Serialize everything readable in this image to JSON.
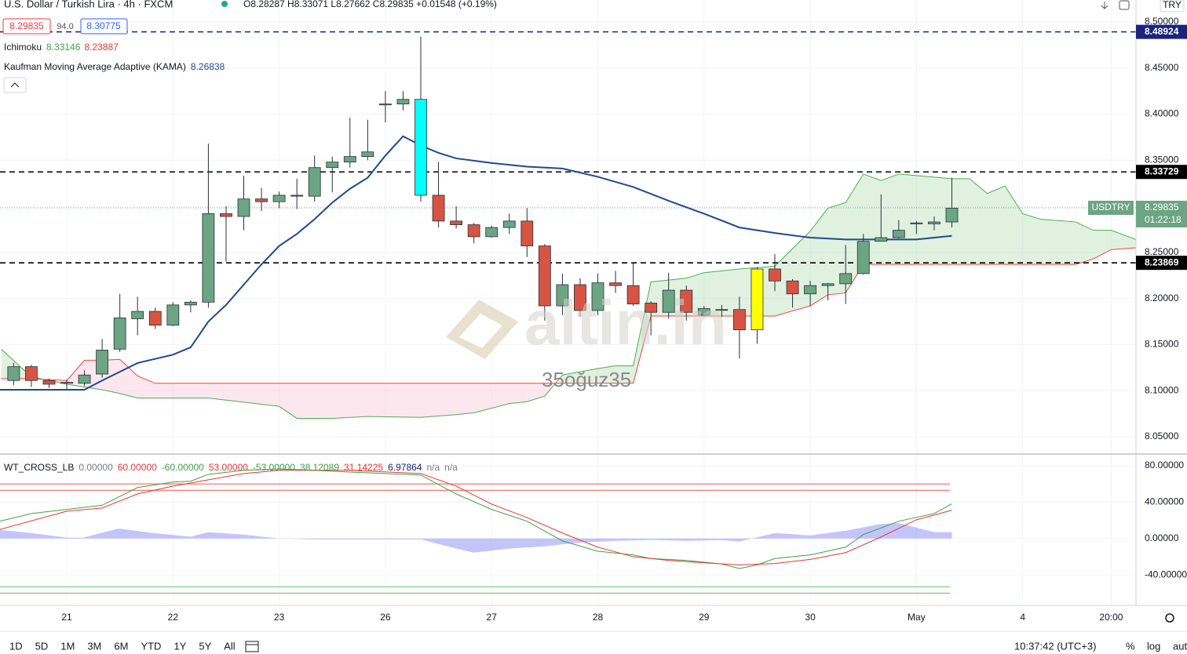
{
  "header": {
    "symbol": "U.S. Dollar / Turkish Lira · 4h · FXCM",
    "ohlc": "O8.28287 H8.33071 L8.27662 C8.29835 +0.01548 (+0.19%)",
    "bid": "8.29835",
    "spread": "94.0",
    "ask": "8.30775",
    "currency": "TRY"
  },
  "indicators": {
    "ichimoku": {
      "name": "Ichimoku",
      "values": [
        "8.33146",
        "8.23887"
      ]
    },
    "kama": {
      "name": "Kaufman Moving Average Adaptive (KAMA)",
      "value": "8.26838"
    }
  },
  "watermark": {
    "brand": "altin.in",
    "user": "35oğuz35"
  },
  "toolbar": {
    "ranges": [
      "1D",
      "5D",
      "1M",
      "3M",
      "6M",
      "YTD",
      "1Y",
      "5Y",
      "All"
    ],
    "time": "10:37:42 (UTC+3)",
    "options": [
      "%",
      "log",
      "auto"
    ]
  },
  "chart_data": [
    {
      "type": "candlestick",
      "symbol_label": "USDTRY",
      "countdown": "01:22:18",
      "x": [
        -3,
        -2,
        -1,
        0,
        1,
        2,
        3,
        4,
        5,
        6,
        7,
        8,
        9,
        10,
        11,
        12,
        13,
        14,
        15,
        16,
        17,
        18,
        19,
        20,
        21,
        22,
        23,
        24,
        25,
        26,
        27,
        28,
        29,
        30,
        31,
        32,
        33,
        34,
        35,
        36,
        37,
        38,
        39,
        40,
        41,
        42,
        43,
        44,
        45,
        46,
        47,
        48,
        49,
        50
      ],
      "open": [
        8.111,
        8.126,
        8.111,
        8.108,
        8.108,
        8.118,
        8.145,
        8.178,
        8.186,
        8.171,
        8.193,
        8.196,
        8.292,
        8.289,
        8.308,
        8.305,
        8.312,
        8.311,
        8.342,
        8.348,
        8.354,
        8.41,
        8.411,
        8.416,
        8.312,
        8.284,
        8.28,
        8.267,
        8.277,
        8.284,
        8.257,
        8.192,
        8.215,
        8.187,
        8.217,
        8.214,
        8.195,
        8.185,
        8.209,
        8.182,
        8.188,
        8.188,
        8.166,
        8.232,
        8.219,
        8.205,
        8.214,
        8.216,
        8.227,
        8.262,
        8.266,
        8.281,
        8.281,
        8.283
      ],
      "high": [
        8.13,
        8.128,
        8.113,
        8.112,
        8.122,
        8.156,
        8.205,
        8.202,
        8.19,
        8.196,
        8.198,
        8.368,
        8.3,
        8.333,
        8.32,
        8.316,
        8.33,
        8.355,
        8.354,
        8.396,
        8.394,
        8.425,
        8.425,
        8.484,
        8.348,
        8.3,
        8.282,
        8.279,
        8.292,
        8.298,
        8.259,
        8.227,
        8.222,
        8.227,
        8.23,
        8.238,
        8.197,
        8.228,
        8.214,
        8.192,
        8.193,
        8.202,
        8.234,
        8.248,
        8.221,
        8.219,
        8.217,
        8.258,
        8.27,
        8.313,
        8.285,
        8.284,
        8.289,
        8.331
      ],
      "low": [
        8.106,
        8.104,
        8.103,
        8.102,
        8.105,
        8.114,
        8.142,
        8.16,
        8.167,
        8.17,
        8.185,
        8.19,
        8.24,
        8.274,
        8.295,
        8.298,
        8.297,
        8.305,
        8.315,
        8.342,
        8.35,
        8.391,
        8.404,
        8.305,
        8.277,
        8.276,
        8.26,
        8.266,
        8.27,
        8.245,
        8.176,
        8.182,
        8.18,
        8.182,
        8.206,
        8.192,
        8.16,
        8.178,
        8.176,
        8.18,
        8.18,
        8.135,
        8.151,
        8.208,
        8.19,
        8.192,
        8.198,
        8.194,
        8.226,
        8.262,
        8.265,
        8.27,
        8.274,
        8.277
      ],
      "close": [
        8.126,
        8.111,
        8.107,
        8.109,
        8.117,
        8.144,
        8.179,
        8.186,
        8.171,
        8.193,
        8.196,
        8.292,
        8.289,
        8.308,
        8.305,
        8.312,
        8.311,
        8.342,
        8.348,
        8.354,
        8.359,
        8.411,
        8.416,
        8.312,
        8.284,
        8.28,
        8.267,
        8.277,
        8.284,
        8.257,
        8.192,
        8.215,
        8.187,
        8.217,
        8.214,
        8.194,
        8.185,
        8.209,
        8.185,
        8.189,
        8.188,
        8.166,
        8.232,
        8.219,
        8.205,
        8.214,
        8.216,
        8.227,
        8.262,
        8.266,
        8.274,
        8.282,
        8.283,
        8.298
      ],
      "up_color": "#6ba583",
      "down_color": "#d75442",
      "highlight": [
        {
          "index": 23,
          "color": "#00ffff"
        },
        {
          "index": 42,
          "color": "#ffff00"
        }
      ],
      "xlim": [
        -3.77,
        60.4
      ],
      "xticks": [
        {
          "value": 0,
          "label": "21"
        },
        {
          "value": 6,
          "label": "22"
        },
        {
          "value": 12,
          "label": "23"
        },
        {
          "value": 18,
          "label": "26"
        },
        {
          "value": 24,
          "label": "27"
        },
        {
          "value": 30,
          "label": "28"
        },
        {
          "value": 36,
          "label": "29"
        },
        {
          "value": 42,
          "label": "30"
        },
        {
          "value": 48,
          "label": "May"
        },
        {
          "value": 54,
          "label": "4"
        },
        {
          "value": 59,
          "label": "20:00"
        }
      ],
      "ylim": [
        8.0321,
        8.5238
      ],
      "yticks": [
        {
          "value": 8.5,
          "label": "8.50000"
        },
        {
          "value": 8.45,
          "label": "8.45000"
        },
        {
          "value": 8.4,
          "label": "8.40000"
        },
        {
          "value": 8.35,
          "label": "8.35000"
        },
        {
          "value": 8.3,
          "label": "8.30000"
        },
        {
          "value": 8.25,
          "label": "8.25000"
        },
        {
          "value": 8.2,
          "label": "8.20000"
        },
        {
          "value": 8.15,
          "label": "8.15000"
        },
        {
          "value": 8.1,
          "label": "8.10000"
        },
        {
          "value": 8.05,
          "label": "8.05000"
        }
      ],
      "grid": true,
      "last_price": 8.29835,
      "price_lines": [
        {
          "value": 8.48924,
          "color": "#1a237e"
        },
        {
          "value": 8.33729,
          "color": "#000000"
        },
        {
          "value": 8.23869,
          "color": "#000000"
        }
      ],
      "kama": {
        "color": "#1e4a8c",
        "x": [
          -3.77,
          1,
          2,
          4,
          6,
          7,
          8,
          9,
          10,
          11,
          12,
          13,
          14,
          15,
          16,
          17,
          18,
          19,
          20,
          21,
          22,
          24,
          26,
          28,
          30,
          32,
          34,
          36,
          38,
          40,
          42,
          44,
          46,
          48,
          50
        ],
        "values": [
          8.101,
          8.101,
          8.111,
          8.13,
          8.139,
          8.147,
          8.175,
          8.193,
          8.215,
          8.237,
          8.257,
          8.27,
          8.286,
          8.304,
          8.319,
          8.331,
          8.355,
          8.376,
          8.366,
          8.358,
          8.352,
          8.347,
          8.343,
          8.341,
          8.332,
          8.321,
          8.306,
          8.292,
          8.277,
          8.271,
          8.266,
          8.264,
          8.264,
          8.264,
          8.268
        ]
      },
      "ichimoku": {
        "color_a": "#4caf50",
        "color_b": "#f44336",
        "fill_up": "#a5d6a7",
        "fill_down": "#f8bbd0",
        "x": [
          -3.7,
          -2,
          0,
          1,
          2,
          3,
          4,
          5,
          8,
          12,
          13,
          15,
          17,
          20,
          22,
          23,
          25,
          26,
          27,
          28,
          30,
          31,
          32,
          33,
          35,
          36,
          38,
          40,
          42,
          43,
          44,
          45,
          46,
          47,
          50,
          51,
          52,
          53,
          54,
          55,
          57,
          58,
          59,
          60.4
        ],
        "span_a": [
          8.145,
          8.115,
          8.107,
          8.104,
          8.101,
          8.097,
          8.092,
          8.092,
          8.092,
          8.083,
          8.07,
          8.07,
          8.072,
          8.071,
          8.074,
          8.076,
          8.086,
          8.088,
          8.094,
          8.117,
          8.124,
          8.127,
          8.127,
          8.218,
          8.222,
          8.228,
          8.232,
          8.235,
          8.273,
          8.298,
          8.304,
          8.335,
          8.328,
          8.335,
          8.33,
          8.33,
          8.314,
          8.322,
          8.292,
          8.286,
          8.283,
          8.274,
          8.274,
          8.264
        ],
        "span_b": [
          8.113,
          8.113,
          8.111,
          8.133,
          8.133,
          8.134,
          8.116,
          8.108,
          8.108,
          8.108,
          8.108,
          8.108,
          8.108,
          8.108,
          8.108,
          8.108,
          8.108,
          8.108,
          8.108,
          8.108,
          8.108,
          8.108,
          8.108,
          8.181,
          8.181,
          8.181,
          8.181,
          8.181,
          8.192,
          8.204,
          8.206,
          8.237,
          8.237,
          8.237,
          8.237,
          8.237,
          8.237,
          8.237,
          8.237,
          8.237,
          8.237,
          8.243,
          8.253,
          8.255
        ]
      }
    },
    {
      "type": "line",
      "xlim": [
        -3.77,
        60.4
      ],
      "ylim": [
        -73.5,
        92
      ],
      "yticks": [
        {
          "value": 80,
          "label": "80.00000"
        },
        {
          "value": 40,
          "label": "40.00000"
        },
        {
          "value": 0,
          "label": "0.00000"
        },
        {
          "value": -40,
          "label": "-40.00000"
        }
      ],
      "legend": {
        "name": "WT_CROSS_LB",
        "values": [
          {
            "text": "0.00000",
            "color": "#787b86"
          },
          {
            "text": "60.00000",
            "color": "#e53935"
          },
          {
            "text": "-60.00000",
            "color": "#43a047"
          },
          {
            "text": "53.00000",
            "color": "#e53935"
          },
          {
            "text": "-53.00000",
            "color": "#43a047"
          },
          {
            "text": "38.12089",
            "color": "#43a047"
          },
          {
            "text": "31.14225",
            "color": "#e53935"
          },
          {
            "text": "6.97864",
            "color": "#1a237e"
          },
          {
            "text": "n/a",
            "color": "#787b86"
          },
          {
            "text": "n/a",
            "color": "#787b86"
          }
        ]
      },
      "levels": [
        {
          "value": 60,
          "color": "#ef5350"
        },
        {
          "value": 53,
          "color": "#ef5350"
        },
        {
          "value": -53,
          "color": "#66bb6a"
        },
        {
          "value": -60,
          "color": "#66bb6a"
        }
      ],
      "series": [
        {
          "color": "#43a047",
          "x": [
            -3.77,
            -2,
            0,
            2,
            4,
            6,
            7,
            8,
            10,
            12,
            14,
            16,
            18,
            20,
            22,
            24,
            26,
            28,
            30,
            32,
            33,
            35,
            37,
            38,
            39,
            40,
            42,
            44,
            45,
            47,
            49,
            50
          ],
          "values": [
            19,
            27.5,
            32,
            36.6,
            56,
            62,
            63,
            70.5,
            75,
            76.5,
            75,
            73,
            71.4,
            69.7,
            49,
            32,
            19,
            -2.6,
            -14,
            -18,
            -22,
            -24,
            -28,
            -33,
            -29,
            -22,
            -18,
            -9.5,
            4.3,
            19,
            27.5,
            38.12089
          ]
        },
        {
          "color": "#e53935",
          "x": [
            -3.77,
            0,
            2,
            4,
            6,
            8,
            10,
            12,
            16,
            20,
            22,
            24,
            26,
            28,
            30,
            32,
            34,
            36,
            38,
            40,
            42,
            44,
            46,
            48,
            50
          ],
          "values": [
            10,
            30,
            33.5,
            49,
            57.6,
            64.5,
            71.4,
            75,
            75,
            71.4,
            57.6,
            37.8,
            23,
            6,
            -9.5,
            -20,
            -24,
            -26.7,
            -29,
            -27.5,
            -23,
            -15.5,
            1.7,
            20.6,
            31.14225
          ]
        }
      ],
      "histogram": {
        "color": "#7b7ff5",
        "x": [
          -3.77,
          -2,
          0,
          0.93,
          2.93,
          4.9,
          7,
          8,
          10,
          12,
          14,
          18,
          20,
          22,
          23,
          25,
          27,
          29,
          31,
          33,
          35,
          37,
          38,
          40,
          42,
          44,
          46,
          47,
          49,
          50
        ],
        "values": [
          9.5,
          6,
          1,
          1,
          11,
          6,
          2,
          7,
          4.3,
          0,
          -1,
          -1,
          -1,
          -11,
          -15.5,
          -11,
          -8.6,
          -4.3,
          -2.6,
          -1.5,
          -2.6,
          -1.7,
          -3.4,
          6,
          3.4,
          8.6,
          16,
          17,
          7,
          6.97864
        ]
      }
    }
  ]
}
